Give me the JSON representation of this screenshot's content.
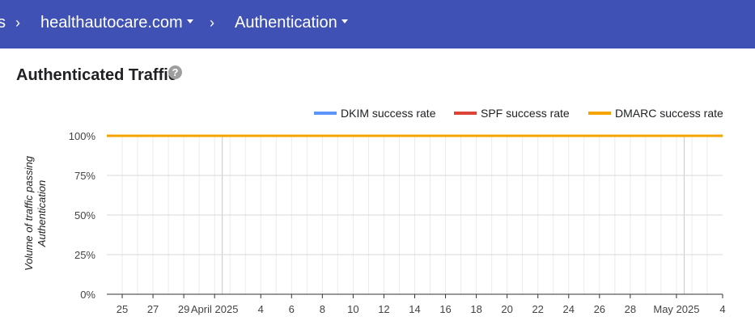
{
  "header": {
    "partial_crumb": "s",
    "domain": "healthautocare.com",
    "section": "Authentication"
  },
  "page_title": "Authenticated Traffic",
  "help_icon": "?",
  "colors": {
    "header_bg": "#3f51b5",
    "dkim": "#5b95f9",
    "spf": "#db4437",
    "dmarc": "#f4a300"
  },
  "chart_data": {
    "type": "line",
    "title": "",
    "ylabel": "Volume of traffic passing Authentication",
    "xlabel": "",
    "ylim": [
      0,
      100
    ],
    "yticks": [
      "0%",
      "25%",
      "50%",
      "75%",
      "100%"
    ],
    "ytick_values": [
      0,
      25,
      50,
      75,
      100
    ],
    "legend": [
      "DKIM success rate",
      "SPF success rate",
      "DMARC success rate"
    ],
    "x_labels": [
      "25",
      "27",
      "29",
      "April 2025",
      "4",
      "6",
      "8",
      "10",
      "12",
      "14",
      "16",
      "18",
      "20",
      "22",
      "24",
      "26",
      "28",
      "May 2025",
      "4"
    ],
    "x_label_days": [
      1,
      3,
      5,
      7,
      10,
      12,
      14,
      16,
      18,
      20,
      22,
      24,
      26,
      28,
      30,
      32,
      34,
      37,
      40
    ],
    "x_range_days": [
      0,
      40
    ],
    "month_boundaries_days": [
      7.5,
      37.5
    ],
    "series": [
      {
        "name": "DKIM success rate",
        "values": [
          100,
          100
        ]
      },
      {
        "name": "SPF success rate",
        "values": [
          100,
          100
        ]
      },
      {
        "name": "DMARC success rate",
        "values": [
          100,
          100
        ]
      }
    ]
  }
}
